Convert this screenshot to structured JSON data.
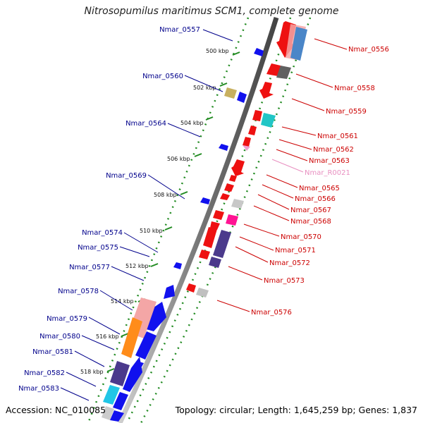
{
  "title": "Nitrosopumilus maritimus SCM1, complete genome",
  "accession": "Accession: NC_010085",
  "summary": "Topology: circular; Length: 1,645,259 bp; Genes: 1,837",
  "ticks": [
    "500 kbp",
    "502 kbp",
    "504 kbp",
    "506 kbp",
    "508 kbp",
    "510 kbp",
    "512 kbp",
    "514 kbp",
    "516 kbp",
    "518 kbp"
  ],
  "right_labels": [
    {
      "text": "Nmar_0556",
      "color": "#cc0000"
    },
    {
      "text": "Nmar_0558",
      "color": "#cc0000"
    },
    {
      "text": "Nmar_0559",
      "color": "#cc0000"
    },
    {
      "text": "Nmar_0561",
      "color": "#cc0000"
    },
    {
      "text": "Nmar_0562",
      "color": "#cc0000"
    },
    {
      "text": "Nmar_0563",
      "color": "#cc0000"
    },
    {
      "text": "Nmar_R0021",
      "color": "#e88fc0"
    },
    {
      "text": "Nmar_0565",
      "color": "#cc0000"
    },
    {
      "text": "Nmar_0566",
      "color": "#cc0000"
    },
    {
      "text": "Nmar_0567",
      "color": "#cc0000"
    },
    {
      "text": "Nmar_0568",
      "color": "#cc0000"
    },
    {
      "text": "Nmar_0570",
      "color": "#cc0000"
    },
    {
      "text": "Nmar_0571",
      "color": "#cc0000"
    },
    {
      "text": "Nmar_0572",
      "color": "#cc0000"
    },
    {
      "text": "Nmar_0573",
      "color": "#cc0000"
    },
    {
      "text": "Nmar_0576",
      "color": "#cc0000"
    }
  ],
  "left_labels": [
    {
      "text": "Nmar_0557"
    },
    {
      "text": "Nmar_0560"
    },
    {
      "text": "Nmar_0564"
    },
    {
      "text": "Nmar_0569"
    },
    {
      "text": "Nmar_0574"
    },
    {
      "text": "Nmar_0575"
    },
    {
      "text": "Nmar_0577"
    },
    {
      "text": "Nmar_0578"
    },
    {
      "text": "Nmar_0579"
    },
    {
      "text": "Nmar_0580"
    },
    {
      "text": "Nmar_0581"
    },
    {
      "text": "Nmar_0582"
    },
    {
      "text": "Nmar_0583"
    }
  ],
  "colors": {
    "forward": "#ee1111",
    "reverse": "#1111ee",
    "backbone": "#888888",
    "grid": "#228b22"
  }
}
